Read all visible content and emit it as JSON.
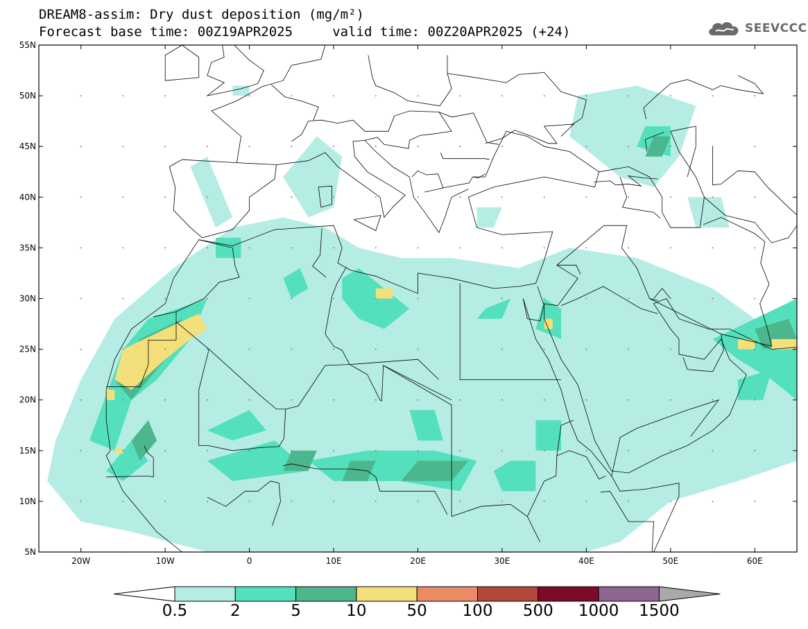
{
  "title": {
    "line1": "DREAM8-assim: Dry dust deposition (mg/m²)",
    "line2": "Forecast base time: 00Z19APR2025     valid time: 00Z20APR2025 (+24)"
  },
  "logo": {
    "text": "SEEVCCC",
    "icon": "cloud-icon"
  },
  "map": {
    "projection": "equirectangular",
    "lon_range": [
      -25,
      65
    ],
    "lat_range": [
      5,
      55
    ],
    "lat_ticks": [
      {
        "value": 55,
        "label": "55N"
      },
      {
        "value": 50,
        "label": "50N"
      },
      {
        "value": 45,
        "label": "45N"
      },
      {
        "value": 40,
        "label": "40N"
      },
      {
        "value": 35,
        "label": "35N"
      },
      {
        "value": 30,
        "label": "30N"
      },
      {
        "value": 25,
        "label": "25N"
      },
      {
        "value": 20,
        "label": "20N"
      },
      {
        "value": 15,
        "label": "15N"
      },
      {
        "value": 10,
        "label": "10N"
      },
      {
        "value": 5,
        "label": "5N"
      }
    ],
    "lon_ticks": [
      {
        "value": -20,
        "label": "20W"
      },
      {
        "value": -10,
        "label": "10W"
      },
      {
        "value": 0,
        "label": "0"
      },
      {
        "value": 10,
        "label": "10E"
      },
      {
        "value": 20,
        "label": "20E"
      },
      {
        "value": 30,
        "label": "30E"
      },
      {
        "value": 40,
        "label": "40E"
      },
      {
        "value": 50,
        "label": "50E"
      },
      {
        "value": 60,
        "label": "60E"
      }
    ],
    "grid": "dotted"
  },
  "colorbar": {
    "units": "mg/m²",
    "levels": [
      "0.5",
      "2",
      "5",
      "10",
      "50",
      "100",
      "500",
      "1000",
      "1500"
    ],
    "colors": [
      "#b5ede5",
      "#55e0bd",
      "#4cb78c",
      "#f3e07a",
      "#e98c66",
      "#b2493c",
      "#7d0a29",
      "#8e6694",
      "#a9a9a9"
    ],
    "under_color": "#ffffff",
    "over_color": "#a9a9a9"
  },
  "deposition_fields": [
    {
      "level": 0,
      "polygons": [
        [
          [
            -23,
            16
          ],
          [
            -20,
            22
          ],
          [
            -16,
            28
          ],
          [
            -9,
            33
          ],
          [
            -2,
            37
          ],
          [
            4,
            38
          ],
          [
            9,
            37
          ],
          [
            13,
            35
          ],
          [
            18,
            34
          ],
          [
            24,
            34
          ],
          [
            32,
            33
          ],
          [
            38,
            35
          ],
          [
            46,
            34
          ],
          [
            55,
            31
          ],
          [
            60,
            28
          ],
          [
            65,
            28
          ],
          [
            65,
            14
          ],
          [
            58,
            12
          ],
          [
            50,
            10
          ],
          [
            44,
            6
          ],
          [
            40,
            5
          ],
          [
            14,
            5
          ],
          [
            -5,
            5
          ],
          [
            -14,
            7
          ],
          [
            -20,
            8
          ],
          [
            -24,
            12
          ]
        ],
        [
          [
            -7,
            43
          ],
          [
            -4,
            37
          ],
          [
            -2,
            38
          ],
          [
            -5,
            44
          ]
        ],
        [
          [
            4,
            42
          ],
          [
            7,
            38
          ],
          [
            10,
            39
          ],
          [
            11,
            44
          ],
          [
            8,
            46
          ]
        ],
        [
          [
            39,
            50
          ],
          [
            46,
            51
          ],
          [
            53,
            49
          ],
          [
            51,
            44
          ],
          [
            48,
            41
          ],
          [
            44,
            42
          ],
          [
            38,
            46
          ]
        ],
        [
          [
            52,
            40
          ],
          [
            56,
            40
          ],
          [
            57,
            37
          ],
          [
            53,
            37
          ]
        ],
        [
          [
            -2,
            51
          ],
          [
            0,
            51
          ],
          [
            0,
            50
          ],
          [
            -2,
            50
          ]
        ],
        [
          [
            27,
            39
          ],
          [
            30,
            39
          ],
          [
            29,
            37
          ],
          [
            27,
            37
          ]
        ]
      ]
    },
    {
      "level": 1,
      "polygons": [
        [
          [
            -19,
            16
          ],
          [
            -15,
            25
          ],
          [
            -12,
            28
          ],
          [
            -5,
            30
          ],
          [
            -7,
            26
          ],
          [
            -11,
            22
          ],
          [
            -14,
            20
          ],
          [
            -16,
            15
          ]
        ],
        [
          [
            -14,
            16
          ],
          [
            -12,
            14
          ],
          [
            -15,
            12
          ],
          [
            -17,
            13
          ]
        ],
        [
          [
            -5,
            14
          ],
          [
            3,
            16
          ],
          [
            7,
            13
          ],
          [
            -2,
            12
          ]
        ],
        [
          [
            -5,
            17
          ],
          [
            0,
            19
          ],
          [
            2,
            17
          ],
          [
            -2,
            16
          ]
        ],
        [
          [
            7,
            14
          ],
          [
            14,
            15
          ],
          [
            22,
            15
          ],
          [
            27,
            14
          ],
          [
            25,
            11
          ],
          [
            18,
            12
          ],
          [
            10,
            12
          ]
        ],
        [
          [
            19,
            19
          ],
          [
            22,
            19
          ],
          [
            23,
            16
          ],
          [
            20,
            16
          ]
        ],
        [
          [
            31,
            14
          ],
          [
            34,
            14
          ],
          [
            34,
            11
          ],
          [
            30,
            11
          ],
          [
            29,
            13
          ]
        ],
        [
          [
            13,
            33
          ],
          [
            16,
            31
          ],
          [
            19,
            29
          ],
          [
            16,
            27
          ],
          [
            13,
            28
          ],
          [
            11,
            30
          ],
          [
            11,
            32
          ]
        ],
        [
          [
            4,
            32
          ],
          [
            6,
            33
          ],
          [
            7,
            31
          ],
          [
            5,
            30
          ]
        ],
        [
          [
            28,
            29
          ],
          [
            31,
            30
          ],
          [
            30,
            28
          ],
          [
            27,
            28
          ]
        ],
        [
          [
            35,
            30
          ],
          [
            37,
            29
          ],
          [
            37,
            26
          ],
          [
            34,
            27
          ]
        ],
        [
          [
            55,
            26
          ],
          [
            60,
            28
          ],
          [
            65,
            30
          ],
          [
            65,
            20
          ],
          [
            62,
            22
          ],
          [
            58,
            24
          ]
        ],
        [
          [
            47,
            47
          ],
          [
            50,
            47
          ],
          [
            50,
            44
          ],
          [
            46,
            45
          ]
        ],
        [
          [
            58,
            22
          ],
          [
            62,
            23
          ],
          [
            61,
            20
          ],
          [
            58,
            20
          ]
        ],
        [
          [
            34,
            18
          ],
          [
            37,
            18
          ],
          [
            37,
            15
          ],
          [
            34,
            15
          ]
        ],
        [
          [
            -4,
            36
          ],
          [
            -1,
            36
          ],
          [
            -1,
            34
          ],
          [
            -4,
            34
          ]
        ]
      ]
    },
    {
      "level": 2,
      "polygons": [
        [
          [
            -12,
            18
          ],
          [
            -11,
            16
          ],
          [
            -13,
            14
          ],
          [
            -14,
            16
          ]
        ],
        [
          [
            20,
            14
          ],
          [
            26,
            14
          ],
          [
            24,
            12
          ],
          [
            18,
            12
          ]
        ],
        [
          [
            5,
            15
          ],
          [
            8,
            15
          ],
          [
            7,
            13
          ],
          [
            4,
            13
          ]
        ],
        [
          [
            12,
            14
          ],
          [
            15,
            14
          ],
          [
            14,
            12
          ],
          [
            11,
            12
          ]
        ],
        [
          [
            -16,
            22
          ],
          [
            -13,
            26
          ],
          [
            -8,
            28
          ],
          [
            -10,
            24
          ],
          [
            -14,
            20
          ]
        ],
        [
          [
            48,
            46
          ],
          [
            50,
            46
          ],
          [
            49,
            44
          ],
          [
            47,
            44
          ]
        ],
        [
          [
            60,
            27
          ],
          [
            64,
            28
          ],
          [
            65,
            26
          ],
          [
            61,
            25
          ]
        ]
      ]
    },
    {
      "level": 3,
      "polygons": [
        [
          [
            -16,
            22
          ],
          [
            -15,
            25
          ],
          [
            -10,
            27
          ],
          [
            -6,
            28.5
          ],
          [
            -5,
            27
          ],
          [
            -7,
            26
          ],
          [
            -10,
            24
          ],
          [
            -14,
            21
          ]
        ],
        [
          [
            -17,
            21
          ],
          [
            -16,
            21
          ],
          [
            -16,
            20
          ],
          [
            -17,
            20
          ]
        ],
        [
          [
            -16,
            15.2
          ],
          [
            -15,
            15.2
          ],
          [
            -15,
            14.7
          ],
          [
            -16,
            14.7
          ]
        ],
        [
          [
            15,
            31
          ],
          [
            17,
            31
          ],
          [
            17,
            30
          ],
          [
            15,
            30
          ]
        ],
        [
          [
            35,
            28
          ],
          [
            36,
            28
          ],
          [
            36,
            27
          ],
          [
            35,
            27
          ]
        ],
        [
          [
            58,
            26
          ],
          [
            60,
            26
          ],
          [
            60,
            25
          ],
          [
            58,
            25
          ]
        ],
        [
          [
            62,
            26
          ],
          [
            65,
            26
          ],
          [
            65,
            25
          ],
          [
            62,
            25
          ]
        ]
      ]
    }
  ]
}
